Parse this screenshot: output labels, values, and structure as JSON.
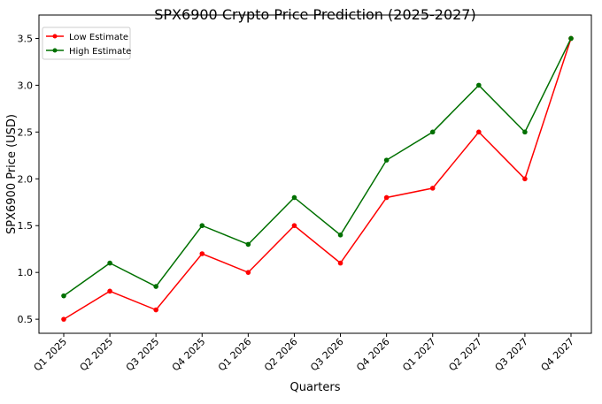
{
  "chart_data": {
    "type": "line",
    "title": "SPX6900 Crypto Price Prediction (2025-2027)",
    "xlabel": "Quarters",
    "ylabel": "SPX6900 Price (USD)",
    "categories": [
      "Q1 2025",
      "Q2 2025",
      "Q3 2025",
      "Q4 2025",
      "Q1 2026",
      "Q2 2026",
      "Q3 2026",
      "Q4 2026",
      "Q1 2027",
      "Q2 2027",
      "Q3 2027",
      "Q4 2027"
    ],
    "yticks": [
      "0.5",
      "1.0",
      "1.5",
      "2.0",
      "2.5",
      "3.0",
      "3.5"
    ],
    "ylim": [
      0.35,
      3.75
    ],
    "grid": false,
    "legend_position": "top-left",
    "series": [
      {
        "name": "Low Estimate",
        "color": "#ff0000",
        "values": [
          0.5,
          0.8,
          0.6,
          1.2,
          1.0,
          1.5,
          1.1,
          1.8,
          1.9,
          2.5,
          2.0,
          3.5
        ]
      },
      {
        "name": "High Estimate",
        "color": "#007000",
        "values": [
          0.75,
          1.1,
          0.85,
          1.5,
          1.3,
          1.8,
          1.4,
          2.2,
          2.5,
          3.0,
          2.5,
          3.5
        ]
      }
    ]
  }
}
